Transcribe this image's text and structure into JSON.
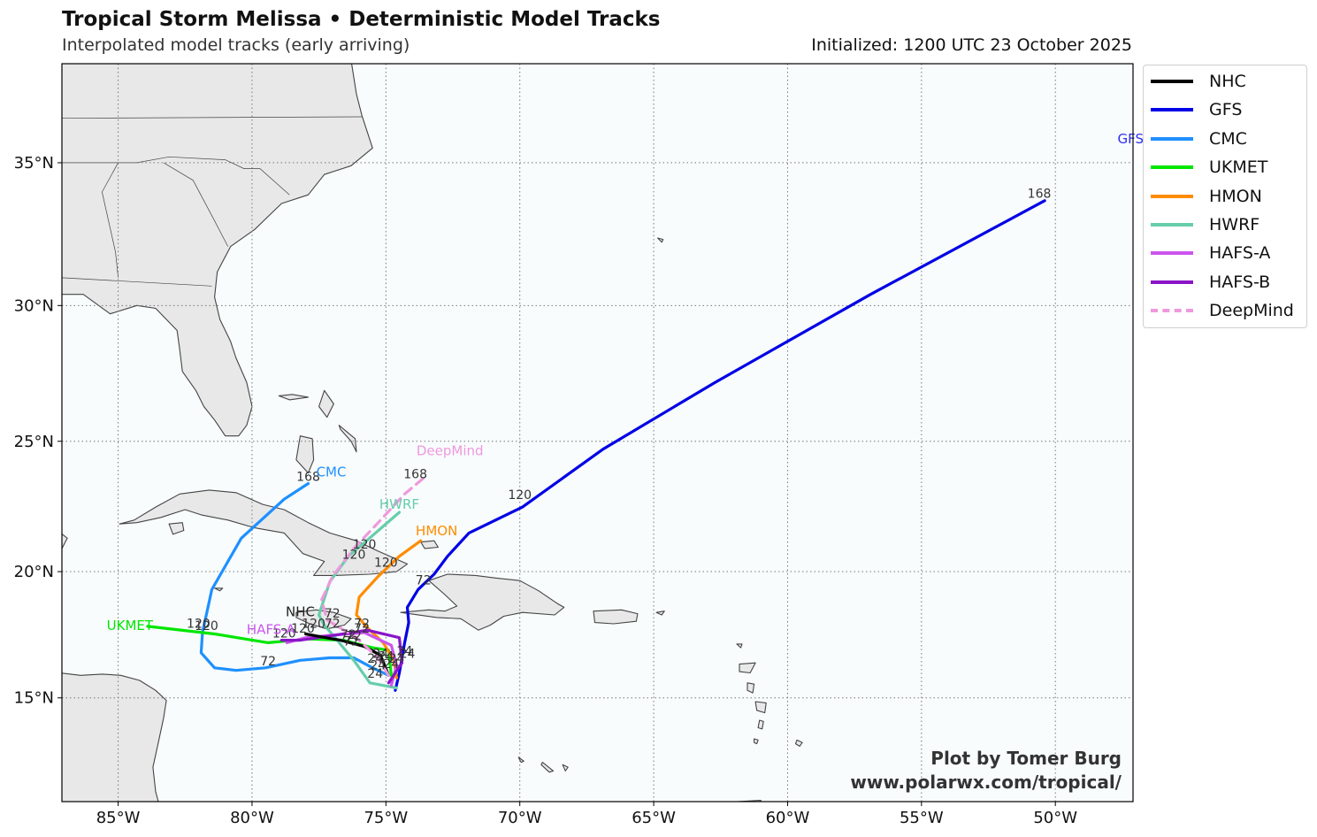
{
  "header": {
    "title": "Tropical Storm Melissa • Deterministic Model Tracks",
    "subtitle": "Interpolated model tracks (early arriving)",
    "initialized": "Initialized: 1200 UTC 23 October 2025"
  },
  "credit": {
    "line1": "Plot by Tomer Burg",
    "line2": "www.polarwx.com/tropical/"
  },
  "map": {
    "extent": {
      "lon": [
        -87.1,
        -47.1
      ],
      "lat": [
        10.8,
        38.3
      ]
    },
    "lon_ticks": [
      {
        "v": -85,
        "label": "85°W"
      },
      {
        "v": -80,
        "label": "80°W"
      },
      {
        "v": -75,
        "label": "75°W"
      },
      {
        "v": -70,
        "label": "70°W"
      },
      {
        "v": -65,
        "label": "65°W"
      },
      {
        "v": -60,
        "label": "60°W"
      },
      {
        "v": -55,
        "label": "55°W"
      },
      {
        "v": -50,
        "label": "50°W"
      }
    ],
    "lat_ticks": [
      {
        "v": 15,
        "label": "15°N"
      },
      {
        "v": 20,
        "label": "20°N"
      },
      {
        "v": 25,
        "label": "25°N"
      },
      {
        "v": 30,
        "label": "30°N"
      },
      {
        "v": 35,
        "label": "35°N"
      }
    ],
    "grid": true,
    "colors": {
      "ocean": "#f8fcfd",
      "land": "#e8e8e8",
      "coast": "#444444"
    }
  },
  "legend": [
    {
      "name": "NHC",
      "color": "#000000",
      "style": "solid"
    },
    {
      "name": "GFS",
      "color": "#0000e6",
      "style": "solid"
    },
    {
      "name": "CMC",
      "color": "#1e90ff",
      "style": "solid"
    },
    {
      "name": "UKMET",
      "color": "#00e600",
      "style": "solid"
    },
    {
      "name": "HMON",
      "color": "#ff8c00",
      "style": "solid"
    },
    {
      "name": "HWRF",
      "color": "#66cdaa",
      "style": "solid"
    },
    {
      "name": "HAFS-A",
      "color": "#cc55ee",
      "style": "solid"
    },
    {
      "name": "HAFS-B",
      "color": "#8a14c8",
      "style": "solid"
    },
    {
      "name": "DeepMind",
      "color": "#ee99dd",
      "style": "dashed"
    }
  ],
  "tracks": [
    {
      "model": "GFS",
      "color": "#0000e6",
      "dashed": false,
      "label": "GFS",
      "label_color": "#2e2eef",
      "points": [
        [
          -74.65,
          15.3
        ],
        [
          -74.5,
          16.0
        ],
        [
          -74.3,
          17.2
        ],
        [
          -74.15,
          18.0
        ],
        [
          -74.2,
          18.6
        ],
        [
          -73.8,
          19.3
        ],
        [
          -73.2,
          19.9
        ],
        [
          -72.7,
          20.6
        ],
        [
          -71.9,
          21.5
        ],
        [
          -69.9,
          22.5
        ],
        [
          -66.9,
          24.7
        ],
        [
          -62.7,
          27.2
        ],
        [
          -56.9,
          30.4
        ],
        [
          -50.4,
          33.7
        ]
      ],
      "hour_labels": [
        {
          "text": "24",
          "lon": -74.2,
          "lat": 16.6
        },
        {
          "text": "72",
          "lon": -73.6,
          "lat": 19.5
        },
        {
          "text": "120",
          "lon": -70.0,
          "lat": 22.8
        },
        {
          "text": "168",
          "lon": -50.6,
          "lat": 33.8
        }
      ]
    },
    {
      "model": "CMC",
      "color": "#1e90ff",
      "dashed": false,
      "label": "CMC",
      "label_color": "#1e90ff",
      "points": [
        [
          -74.9,
          15.9
        ],
        [
          -75.5,
          16.2
        ],
        [
          -76.2,
          16.6
        ],
        [
          -77.1,
          16.6
        ],
        [
          -78.2,
          16.5
        ],
        [
          -79.5,
          16.2
        ],
        [
          -80.6,
          16.1
        ],
        [
          -81.4,
          16.2
        ],
        [
          -81.9,
          16.8
        ],
        [
          -81.85,
          17.6
        ],
        [
          -81.5,
          19.3
        ],
        [
          -80.4,
          21.3
        ],
        [
          -78.8,
          22.8
        ],
        [
          -77.9,
          23.4
        ]
      ],
      "hour_labels": [
        {
          "text": "24",
          "lon": -75.3,
          "lat": 16.15
        },
        {
          "text": "72",
          "lon": -79.4,
          "lat": 16.3
        },
        {
          "text": "120",
          "lon": -81.7,
          "lat": 17.7
        },
        {
          "text": "168",
          "lon": -77.9,
          "lat": 23.5
        }
      ]
    },
    {
      "model": "UKMET",
      "color": "#00e600",
      "dashed": false,
      "label": "UKMET",
      "label_color": "#00e600",
      "points": [
        [
          -74.8,
          15.9
        ],
        [
          -74.85,
          16.4
        ],
        [
          -74.9,
          16.9
        ],
        [
          -75.5,
          17.0
        ],
        [
          -76.6,
          17.3
        ],
        [
          -77.9,
          17.35
        ],
        [
          -79.4,
          17.2
        ],
        [
          -81.4,
          17.55
        ],
        [
          -83.9,
          17.85
        ]
      ],
      "hour_labels": [
        {
          "text": "24",
          "lon": -75.0,
          "lat": 16.5
        },
        {
          "text": "72",
          "lon": -76.3,
          "lat": 17.1
        },
        {
          "text": "120",
          "lon": -82.0,
          "lat": 17.8
        }
      ]
    },
    {
      "model": "HMON",
      "color": "#ff8c00",
      "dashed": false,
      "label": "HMON",
      "label_color": "#ff8c00",
      "points": [
        [
          -74.6,
          15.8
        ],
        [
          -74.7,
          16.5
        ],
        [
          -75.1,
          17.2
        ],
        [
          -75.7,
          17.8
        ],
        [
          -76.1,
          18.3
        ],
        [
          -76.0,
          19.0
        ],
        [
          -75.3,
          19.8
        ],
        [
          -74.5,
          20.6
        ],
        [
          -73.7,
          21.2
        ]
      ],
      "hour_labels": [
        {
          "text": "24",
          "lon": -74.8,
          "lat": 16.2
        },
        {
          "text": "72",
          "lon": -75.9,
          "lat": 17.8
        },
        {
          "text": "120",
          "lon": -75.0,
          "lat": 20.2
        }
      ]
    },
    {
      "model": "HWRF",
      "color": "#66cdaa",
      "dashed": false,
      "label": "HWRF",
      "label_color": "#66cdaa",
      "points": [
        [
          -74.6,
          15.4
        ],
        [
          -75.6,
          15.6
        ],
        [
          -76.2,
          16.5
        ],
        [
          -76.9,
          17.4
        ],
        [
          -77.3,
          17.9
        ],
        [
          -77.5,
          18.3
        ],
        [
          -77.1,
          19.6
        ],
        [
          -76.4,
          20.6
        ],
        [
          -75.5,
          21.4
        ],
        [
          -74.5,
          22.3
        ]
      ],
      "hour_labels": [
        {
          "text": "24",
          "lon": -75.4,
          "lat": 15.8
        },
        {
          "text": "72",
          "lon": -77.0,
          "lat": 17.8
        },
        {
          "text": "120",
          "lon": -75.8,
          "lat": 20.9
        }
      ]
    },
    {
      "model": "HAFS-A",
      "color": "#cc55ee",
      "dashed": false,
      "label": "HAFS-A",
      "label_color": "#cc55ee",
      "points": [
        [
          -74.8,
          15.5
        ],
        [
          -74.6,
          16.3
        ],
        [
          -74.8,
          17.1
        ],
        [
          -75.8,
          17.6
        ],
        [
          -77.0,
          17.5
        ],
        [
          -78.0,
          17.4
        ],
        [
          -78.7,
          17.2
        ]
      ],
      "hour_labels": [
        {
          "text": "24",
          "lon": -74.6,
          "lat": 16.4
        },
        {
          "text": "72",
          "lon": -76.4,
          "lat": 17.35
        },
        {
          "text": "120",
          "lon": -78.1,
          "lat": 17.6
        }
      ]
    },
    {
      "model": "HAFS-B",
      "color": "#8a14c8",
      "dashed": false,
      "label": "",
      "label_color": "#8a14c8",
      "points": [
        [
          -74.9,
          15.6
        ],
        [
          -74.4,
          16.4
        ],
        [
          -74.5,
          17.4
        ],
        [
          -75.7,
          17.7
        ],
        [
          -76.9,
          17.5
        ],
        [
          -78.2,
          17.3
        ],
        [
          -78.9,
          17.3
        ]
      ],
      "hour_labels": [
        {
          "text": "24",
          "lon": -74.3,
          "lat": 16.7
        },
        {
          "text": "72",
          "lon": -75.9,
          "lat": 17.6
        },
        {
          "text": "120",
          "lon": -78.8,
          "lat": 17.4
        }
      ]
    },
    {
      "model": "NHC",
      "color": "#000000",
      "dashed": false,
      "label": "NHC",
      "label_color": "#222222",
      "points": [
        [
          -74.9,
          15.9
        ],
        [
          -75.2,
          16.7
        ],
        [
          -75.8,
          17.05
        ],
        [
          -76.7,
          17.3
        ],
        [
          -77.5,
          17.45
        ],
        [
          -78.0,
          17.55
        ]
      ],
      "hour_labels": [
        {
          "text": "24",
          "lon": -75.4,
          "lat": 16.4
        },
        {
          "text": "72",
          "lon": -76.2,
          "lat": 17.3
        },
        {
          "text": "120",
          "lon": -77.7,
          "lat": 17.8
        }
      ]
    },
    {
      "model": "DeepMind",
      "color": "#ee99dd",
      "dashed": true,
      "label": "DeepMind",
      "label_color": "#ee99dd",
      "points": [
        [
          -74.9,
          15.9
        ],
        [
          -75.3,
          16.6
        ],
        [
          -76.1,
          17.4
        ],
        [
          -77.2,
          18.1
        ],
        [
          -77.4,
          18.9
        ],
        [
          -77.0,
          19.8
        ],
        [
          -76.2,
          20.9
        ],
        [
          -75.2,
          22.0
        ],
        [
          -74.3,
          23.0
        ],
        [
          -73.6,
          23.6
        ]
      ],
      "hour_labels": [
        {
          "text": "24",
          "lon": -75.2,
          "lat": 16.6
        },
        {
          "text": "72",
          "lon": -77.0,
          "lat": 18.2
        },
        {
          "text": "120",
          "lon": -76.2,
          "lat": 20.5
        },
        {
          "text": "168",
          "lon": -73.9,
          "lat": 23.6
        }
      ]
    }
  ]
}
